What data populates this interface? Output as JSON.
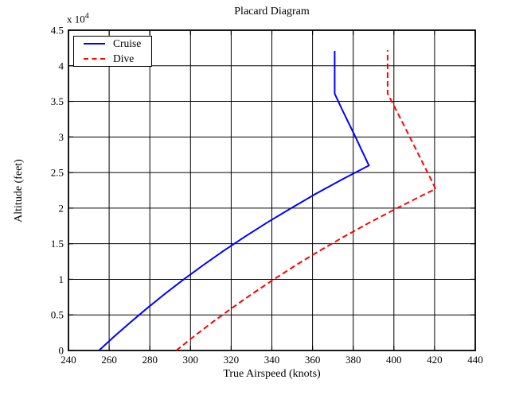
{
  "figure": {
    "title": "Placard Diagram",
    "xlabel": "True Airspeed (knots)",
    "ylabel": "Altitude (feet)",
    "y_multiplier_base": "x 10",
    "y_multiplier_exp": "4",
    "background": "#ffffff",
    "grid_color": "#000000",
    "box_color": "#000000"
  },
  "legend": {
    "position": "top-left-inside",
    "items": [
      {
        "label": "Cruise",
        "color": "#0000ff",
        "style": "solid"
      },
      {
        "label": "Dive",
        "color": "#ff0000",
        "style": "dashed"
      }
    ]
  },
  "chart_data": {
    "type": "line",
    "title": "Placard Diagram",
    "xlabel": "True Airspeed (knots)",
    "ylabel": "Altitude (feet)",
    "xlim": [
      240,
      440
    ],
    "ylim": [
      0,
      45000
    ],
    "x_ticks": [
      240,
      260,
      280,
      300,
      320,
      340,
      360,
      380,
      400,
      420,
      440
    ],
    "x_tick_labels": [
      "240",
      "260",
      "280",
      "300",
      "320",
      "340",
      "360",
      "380",
      "400",
      "420",
      "440"
    ],
    "y_ticks": [
      0,
      5000,
      10000,
      15000,
      20000,
      25000,
      30000,
      35000,
      40000,
      45000
    ],
    "y_tick_labels": [
      "0",
      "0.5",
      "1",
      "1.5",
      "2",
      "2.5",
      "3",
      "3.5",
      "4",
      "4.5"
    ],
    "y_axis_multiplier": "x 10^4",
    "grid": true,
    "legend_position": "top-left-inside",
    "series": [
      {
        "name": "Cruise",
        "color": "#0000ff",
        "style": "solid",
        "points": [
          [
            255.0,
            0
          ],
          [
            262.6,
            2000
          ],
          [
            270.6,
            4000
          ],
          [
            278.9,
            6000
          ],
          [
            287.6,
            8000
          ],
          [
            296.7,
            10000
          ],
          [
            306.3,
            12000
          ],
          [
            316.3,
            14000
          ],
          [
            326.8,
            16000
          ],
          [
            337.8,
            18000
          ],
          [
            349.5,
            20000
          ],
          [
            361.5,
            22000
          ],
          [
            374.3,
            24000
          ],
          [
            387.7,
            26000
          ],
          [
            384.4,
            28000
          ],
          [
            381.1,
            30000
          ],
          [
            377.7,
            32000
          ],
          [
            374.3,
            34000
          ],
          [
            370.9,
            36089
          ],
          [
            370.9,
            42100
          ]
        ]
      },
      {
        "name": "Dive",
        "color": "#ff0000",
        "style": "dashed",
        "points": [
          [
            293.0,
            0
          ],
          [
            301.8,
            2000
          ],
          [
            310.9,
            4000
          ],
          [
            320.5,
            6000
          ],
          [
            330.5,
            8000
          ],
          [
            341.0,
            10000
          ],
          [
            351.9,
            12000
          ],
          [
            363.4,
            14000
          ],
          [
            375.5,
            16000
          ],
          [
            388.2,
            18000
          ],
          [
            401.6,
            20000
          ],
          [
            415.4,
            22000
          ],
          [
            420.5,
            22700
          ],
          [
            418.3,
            24000
          ],
          [
            414.8,
            26000
          ],
          [
            411.3,
            28000
          ],
          [
            407.8,
            30000
          ],
          [
            404.3,
            32000
          ],
          [
            400.7,
            34000
          ],
          [
            396.9,
            36089
          ],
          [
            396.9,
            42200
          ]
        ]
      }
    ]
  }
}
